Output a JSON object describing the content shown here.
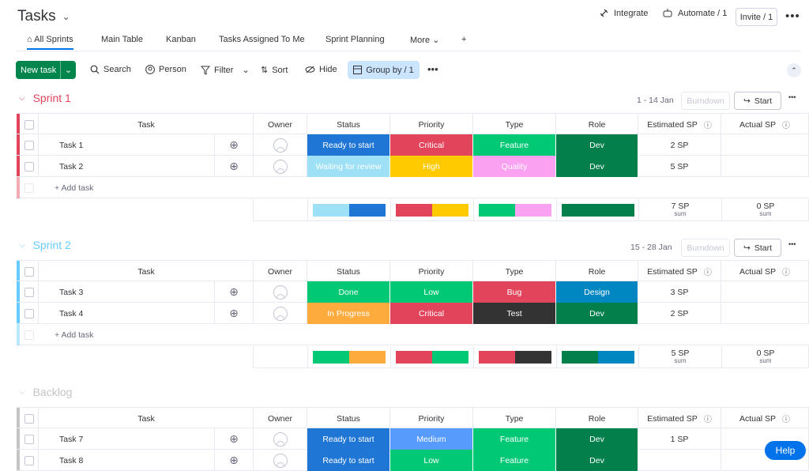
{
  "header": {
    "title": "Tasks",
    "integrate_label": "Integrate",
    "automate_label": "Automate / 1",
    "invite_label": "Invite / 1"
  },
  "tabs": [
    {
      "label": "All Sprints"
    },
    {
      "label": "Main Table"
    },
    {
      "label": "Kanban"
    },
    {
      "label": "Tasks Assigned To Me"
    },
    {
      "label": "Sprint Planning"
    },
    {
      "label": "More"
    }
  ],
  "add_view_label": "+",
  "toolbar": {
    "new_task_label": "New task",
    "search_label": "Search",
    "person_label": "Person",
    "filter_label": "Filter",
    "sort_label": "Sort",
    "hide_label": "Hide",
    "group_by_label": "Group by / 1"
  },
  "columns": {
    "task": "Task",
    "owner": "Owner",
    "status": "Status",
    "priority": "Priority",
    "type": "Type",
    "role": "Role",
    "estimated": "Estimated SP",
    "actual": "Actual SP"
  },
  "add_task_label": "+ Add task",
  "burndown_label": "Burndown",
  "start_label": "Start",
  "sum_label": "sum",
  "colors": {
    "sprint1": "#e2445c",
    "sprint2": "#66ccff",
    "backlog": "#c4c4c4",
    "primary": "#0073ea",
    "new_task_green": "#00854d"
  },
  "groups": [
    {
      "name": "Sprint 1",
      "dates": "1 - 14 Jan",
      "rows": [
        {
          "task": "Task 1",
          "status": {
            "text": "Ready to start",
            "color": "#1f76d5"
          },
          "priority": {
            "text": "Critical",
            "color": "#e2445c"
          },
          "type": {
            "text": "Feature",
            "color": "#00c875"
          },
          "role": {
            "text": "Dev",
            "color": "#037f4c"
          },
          "estimated": "2 SP",
          "actual": ""
        },
        {
          "task": "Task 2",
          "status": {
            "text": "Waiting for review",
            "color": "#9ee0f5"
          },
          "priority": {
            "text": "High",
            "color": "#ffcb00"
          },
          "type": {
            "text": "Quality",
            "color": "#faa1f1"
          },
          "role": {
            "text": "Dev",
            "color": "#037f4c"
          },
          "estimated": "5 SP",
          "actual": ""
        }
      ],
      "summary": {
        "status_colors": [
          "#9ee0f5",
          "#1f76d5"
        ],
        "priority_colors": [
          "#e2445c",
          "#ffcb00"
        ],
        "type_colors": [
          "#00c875",
          "#faa1f1"
        ],
        "role_colors": [
          "#037f4c"
        ],
        "estimated": "7 SP",
        "actual": "0 SP"
      }
    },
    {
      "name": "Sprint 2",
      "dates": "15 - 28 Jan",
      "rows": [
        {
          "task": "Task 3",
          "status": {
            "text": "Done",
            "color": "#00c875"
          },
          "priority": {
            "text": "Low",
            "color": "#00c875"
          },
          "type": {
            "text": "Bug",
            "color": "#e2445c"
          },
          "role": {
            "text": "Design",
            "color": "#0086c0"
          },
          "estimated": "3 SP",
          "actual": ""
        },
        {
          "task": "Task 4",
          "status": {
            "text": "In Progress",
            "color": "#fdab3d"
          },
          "priority": {
            "text": "Critical",
            "color": "#e2445c"
          },
          "type": {
            "text": "Test",
            "color": "#333333"
          },
          "role": {
            "text": "Dev",
            "color": "#037f4c"
          },
          "estimated": "2 SP",
          "actual": ""
        }
      ],
      "summary": {
        "status_colors": [
          "#00c875",
          "#fdab3d"
        ],
        "priority_colors": [
          "#e2445c",
          "#00c875"
        ],
        "type_colors": [
          "#e2445c",
          "#333333"
        ],
        "role_colors": [
          "#037f4c",
          "#0086c0"
        ],
        "estimated": "5 SP",
        "actual": "0 SP"
      }
    },
    {
      "name": "Backlog",
      "dates": "",
      "rows": [
        {
          "task": "Task 7",
          "status": {
            "text": "Ready to start",
            "color": "#1f76d5"
          },
          "priority": {
            "text": "Medium",
            "color": "#579bfc"
          },
          "type": {
            "text": "Feature",
            "color": "#00c875"
          },
          "role": {
            "text": "Dev",
            "color": "#037f4c"
          },
          "estimated": "1 SP",
          "actual": ""
        },
        {
          "task": "Task 8",
          "status": {
            "text": "Ready to start",
            "color": "#1f76d5"
          },
          "priority": {
            "text": "Low",
            "color": "#00c875"
          },
          "type": {
            "text": "Feature",
            "color": "#00c875"
          },
          "role": {
            "text": "Dev",
            "color": "#037f4c"
          },
          "estimated": "",
          "actual": ""
        }
      ]
    }
  ],
  "help_label": "Help"
}
